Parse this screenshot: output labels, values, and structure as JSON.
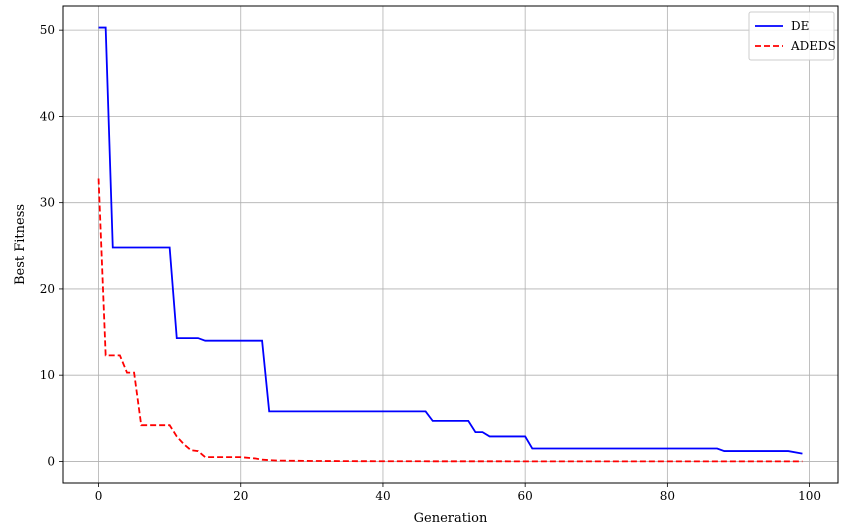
{
  "chart_data": {
    "type": "line",
    "title": "",
    "xlabel": "Generation",
    "ylabel": "Best Fitness",
    "xlim": [
      -5,
      104
    ],
    "ylim": [
      -2.5,
      52.8
    ],
    "xticks": [
      0,
      20,
      40,
      60,
      80,
      100
    ],
    "yticks": [
      0,
      10,
      20,
      30,
      40,
      50
    ],
    "grid": true,
    "legend_position": "top-right",
    "series": [
      {
        "name": "DE",
        "color": "#0000ff",
        "style": "solid",
        "points": [
          [
            0,
            50.3
          ],
          [
            1,
            50.3
          ],
          [
            2,
            24.8
          ],
          [
            10,
            24.8
          ],
          [
            11,
            14.3
          ],
          [
            14,
            14.3
          ],
          [
            15,
            14
          ],
          [
            23,
            14
          ],
          [
            24,
            5.8
          ],
          [
            46,
            5.8
          ],
          [
            47,
            4.7
          ],
          [
            52,
            4.7
          ],
          [
            53,
            3.4
          ],
          [
            54,
            3.4
          ],
          [
            55,
            2.9
          ],
          [
            60,
            2.9
          ],
          [
            61,
            1.5
          ],
          [
            87,
            1.5
          ],
          [
            88,
            1.2
          ],
          [
            97,
            1.2
          ],
          [
            99,
            0.9
          ]
        ]
      },
      {
        "name": "ADEDS",
        "color": "#ff0000",
        "style": "dashed",
        "points": [
          [
            0,
            32.8
          ],
          [
            1,
            12.3
          ],
          [
            3,
            12.3
          ],
          [
            4,
            10.3
          ],
          [
            5,
            10.3
          ],
          [
            6,
            4.2
          ],
          [
            10,
            4.2
          ],
          [
            11,
            2.9
          ],
          [
            12,
            2.0
          ],
          [
            13,
            1.3
          ],
          [
            14,
            1.2
          ],
          [
            15,
            0.5
          ],
          [
            20,
            0.5
          ],
          [
            22,
            0.35
          ],
          [
            23,
            0.2
          ],
          [
            25,
            0.1
          ],
          [
            30,
            0.05
          ],
          [
            40,
            0.02
          ],
          [
            60,
            0.01
          ],
          [
            80,
            0.01
          ],
          [
            99,
            0.01
          ]
        ]
      }
    ]
  }
}
